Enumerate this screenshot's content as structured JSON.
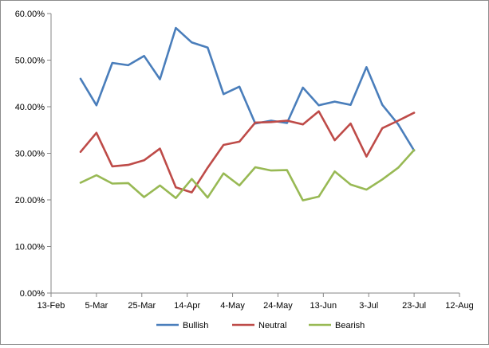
{
  "chart_data": {
    "type": "line",
    "x_ticks": [
      "13-Feb",
      "5-Mar",
      "25-Mar",
      "14-Apr",
      "4-May",
      "24-May",
      "13-Jun",
      "3-Jul",
      "23-Jul",
      "12-Aug"
    ],
    "y_ticks": [
      "0.00%",
      "10.00%",
      "20.00%",
      "30.00%",
      "40.00%",
      "50.00%",
      "60.00%"
    ],
    "xlim": [
      "2015-02-13",
      "2015-08-12"
    ],
    "ylim": [
      0,
      60
    ],
    "x": [
      "2015-02-26",
      "2015-03-05",
      "2015-03-12",
      "2015-03-19",
      "2015-03-26",
      "2015-04-02",
      "2015-04-09",
      "2015-04-16",
      "2015-04-23",
      "2015-04-30",
      "2015-05-07",
      "2015-05-14",
      "2015-05-21",
      "2015-05-28",
      "2015-06-04",
      "2015-06-11",
      "2015-06-18",
      "2015-06-25",
      "2015-07-02",
      "2015-07-09",
      "2015-07-16",
      "2015-07-23"
    ],
    "series": [
      {
        "name": "Bullish",
        "color": "#4a7ebb",
        "values": [
          46.0,
          40.3,
          49.4,
          48.9,
          50.9,
          45.9,
          56.9,
          53.8,
          52.7,
          42.7,
          44.3,
          36.4,
          37.0,
          36.5,
          44.1,
          40.3,
          41.1,
          40.4,
          48.5,
          40.4,
          36.2,
          30.6
        ]
      },
      {
        "name": "Neutral",
        "color": "#be4b48",
        "values": [
          30.3,
          34.4,
          27.2,
          27.5,
          28.5,
          31.0,
          22.7,
          21.6,
          26.9,
          31.8,
          32.5,
          36.6,
          36.7,
          37.0,
          36.2,
          39.0,
          32.8,
          36.4,
          29.3,
          35.4,
          37.0,
          38.7
        ]
      },
      {
        "name": "Bearish",
        "color": "#98b954",
        "values": [
          23.7,
          25.3,
          23.5,
          23.6,
          20.6,
          23.1,
          20.4,
          24.5,
          20.5,
          25.7,
          23.1,
          27.0,
          26.3,
          26.4,
          19.9,
          20.7,
          26.1,
          23.3,
          22.2,
          24.4,
          26.9,
          30.7
        ]
      }
    ],
    "legend": "bottom",
    "grid": false
  }
}
